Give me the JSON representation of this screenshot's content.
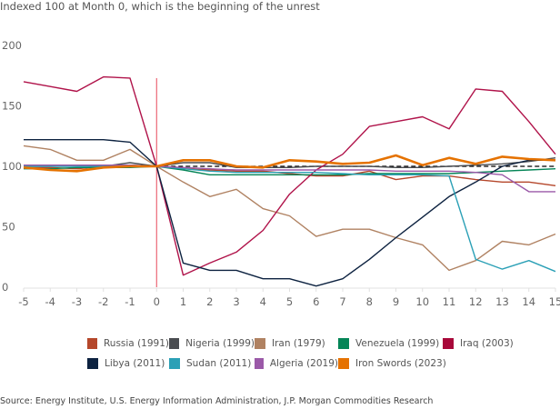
{
  "chart_data": {
    "type": "line",
    "title": "",
    "subtitle": "Indexed 100 at Month 0, which is the beginning of the unrest",
    "xlabel": "",
    "ylabel": "",
    "x": [
      -5,
      -4,
      -3,
      -2,
      -1,
      0,
      1,
      2,
      3,
      4,
      5,
      6,
      7,
      8,
      9,
      10,
      11,
      12,
      13,
      14,
      15
    ],
    "x_ticks": [
      "-5",
      "-4",
      "-3",
      "-2",
      "-1",
      "0",
      "1",
      "2",
      "3",
      "4",
      "5",
      "6",
      "7",
      "8",
      "9",
      "10",
      "11",
      "12",
      "13",
      "14",
      "15"
    ],
    "y_ticks": [
      "0",
      "50",
      "100",
      "150",
      "200"
    ],
    "ylim": [
      0,
      200
    ],
    "xlim": [
      -5,
      15
    ],
    "grid": false,
    "reference_lines": [
      {
        "type": "vertical",
        "x": 0,
        "color": "#e8485a"
      },
      {
        "type": "horizontal-dashed",
        "y": 100,
        "color": "#000000"
      }
    ],
    "series": [
      {
        "name": "Russia (1991)",
        "color": "#b5472b",
        "values": [
          99,
          99,
          98,
          100,
          101,
          100,
          98,
          97,
          96,
          96,
          94,
          92,
          92,
          96,
          89,
          92,
          92,
          89,
          87,
          87,
          84
        ]
      },
      {
        "name": "Nigeria (1999)",
        "color": "#4a4d51",
        "values": [
          101,
          101,
          101,
          100,
          103,
          100,
          103,
          103,
          99,
          99,
          99,
          100,
          100,
          100,
          99,
          99,
          100,
          101,
          102,
          104,
          107
        ]
      },
      {
        "name": "Iran (1979)",
        "color": "#b08262",
        "values": [
          117,
          114,
          105,
          105,
          114,
          100,
          87,
          75,
          81,
          65,
          59,
          42,
          48,
          48,
          41,
          35,
          14,
          22,
          38,
          35,
          44
        ]
      },
      {
        "name": "Venezuela (1999)",
        "color": "#058557",
        "values": [
          98,
          98,
          99,
          99,
          99,
          100,
          97,
          93,
          93,
          93,
          93,
          93,
          93,
          94,
          94,
          94,
          94,
          95,
          96,
          97,
          98
        ]
      },
      {
        "name": "Iraq (2003)",
        "color": "#b0134a",
        "values": [
          170,
          166,
          162,
          174,
          173,
          100,
          10,
          20,
          29,
          47,
          77,
          97,
          110,
          133,
          137,
          141,
          131,
          164,
          162,
          137,
          110
        ]
      },
      {
        "name": "Libya (2011)",
        "color": "#0d2240",
        "values": [
          122,
          122,
          122,
          122,
          120,
          100,
          20,
          14,
          14,
          7,
          7,
          1,
          7,
          23,
          41,
          58,
          75,
          87,
          100,
          105,
          105
        ]
      },
      {
        "name": "Sudan (2011)",
        "color": "#2ba0b6",
        "values": [
          100,
          100,
          100,
          100,
          100,
          100,
          98,
          96,
          95,
          95,
          95,
          95,
          94,
          93,
          93,
          93,
          92,
          23,
          15,
          22,
          13
        ]
      },
      {
        "name": "Algeria (2019)",
        "color": "#9b59a8",
        "values": [
          101,
          101,
          101,
          101,
          101,
          100,
          99,
          98,
          97,
          97,
          97,
          97,
          97,
          97,
          96,
          96,
          96,
          95,
          93,
          79,
          79
        ]
      },
      {
        "name": "Iron Swords (2023)",
        "color": "#e57200",
        "values": [
          99,
          97,
          96,
          99,
          100,
          100,
          105,
          105,
          100,
          99,
          105,
          104,
          102,
          103,
          109,
          101,
          107,
          102,
          108,
          106,
          105
        ]
      }
    ]
  },
  "legend": {
    "rows": [
      [
        0,
        1,
        2,
        3,
        4
      ],
      [
        5,
        6,
        7,
        8
      ]
    ]
  },
  "source": "Source: Energy Institute, U.S. Energy Information Administration, J.P. Morgan Commodities Research"
}
